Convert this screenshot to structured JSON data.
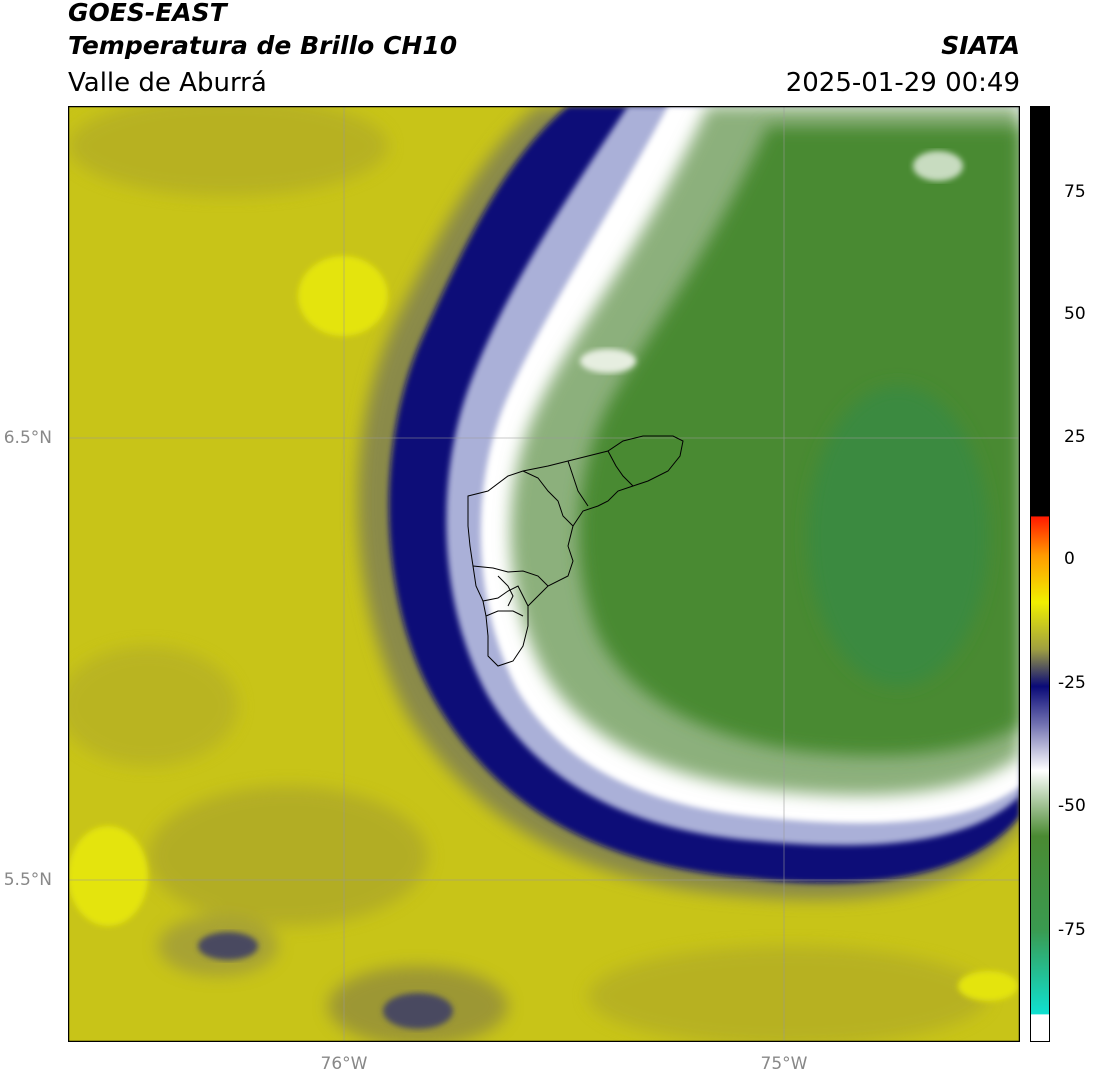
{
  "header": {
    "title_line1": "GOES-EAST",
    "title_line2": "Temperatura de Brillo CH10",
    "subtitle": "Valle de Aburrá",
    "organization": "SIATA",
    "datetime": "2025-01-29 00:49"
  },
  "map": {
    "lat_labels": [
      "6.5°N",
      "5.5°N"
    ],
    "lon_labels": [
      "76°W",
      "75°W"
    ]
  },
  "colorbar": {
    "tick_labels": [
      "75",
      "50",
      "25",
      "0",
      "-25",
      "-50",
      "-75"
    ]
  },
  "colors": {
    "warm_yellow": "#cccc1a",
    "bright_yellow": "#e4e40a",
    "olive": "#8a8a3a",
    "navy": "#0a0a78",
    "white": "#ffffff",
    "green_light": "#9ebf8f",
    "green": "#4f8a3a",
    "green_dark": "#3a8a40",
    "cyan": "#10e0d0",
    "black": "#000000",
    "red": "#ff1a00"
  }
}
